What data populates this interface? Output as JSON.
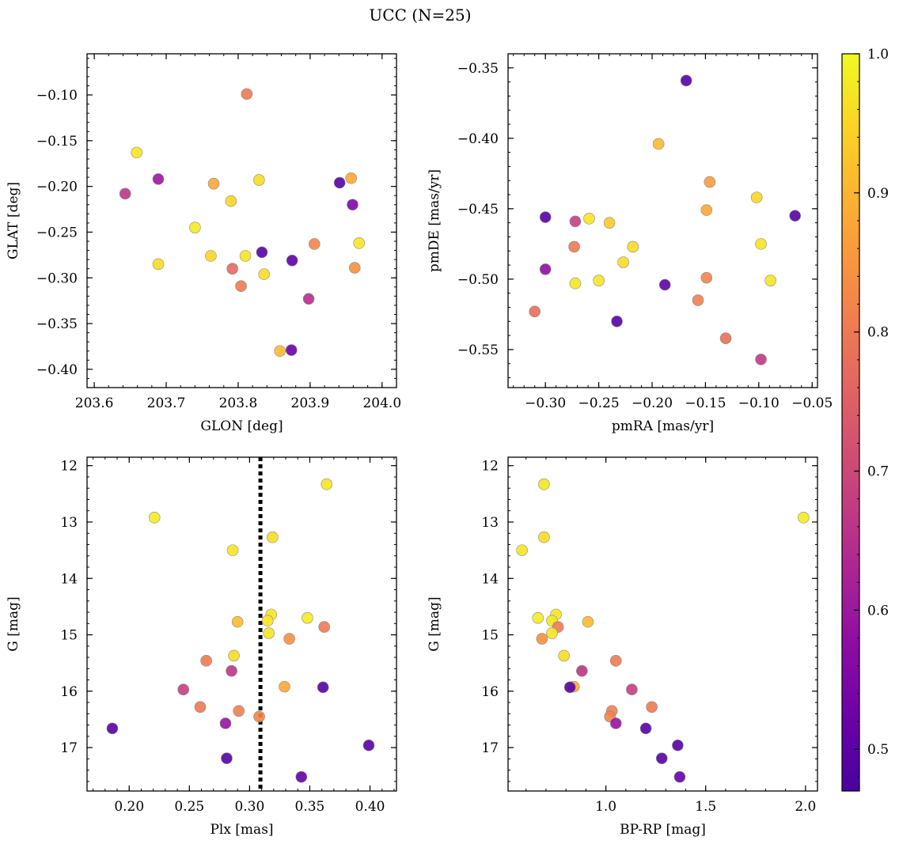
{
  "figure": {
    "title": "UCC (N=25)",
    "colormap": "plasma",
    "colorbar": {
      "range": [
        0.47,
        1.0
      ],
      "ticks": [
        0.5,
        0.6,
        0.7,
        0.8,
        0.9,
        1.0
      ],
      "tick_labels": [
        "0.5",
        "0.6",
        "0.7",
        "0.8",
        "0.9",
        "1.0"
      ]
    }
  },
  "chart_data": [
    {
      "type": "scatter",
      "id": "glon-glat",
      "xlabel": "GLON [deg]",
      "ylabel": "GLAT [deg]",
      "xlim": [
        203.59,
        204.02
      ],
      "ylim": [
        -0.42,
        -0.055
      ],
      "y_inverted": false,
      "grid": false,
      "xticks": [
        203.6,
        203.7,
        203.8,
        203.9,
        204.0
      ],
      "xtick_labels": [
        "203.6",
        "203.7",
        "203.8",
        "203.9",
        "204.0"
      ],
      "yticks": [
        -0.1,
        -0.15,
        -0.2,
        -0.25,
        -0.3,
        -0.35,
        -0.4
      ],
      "ytick_labels": [
        "−0.10",
        "−0.15",
        "−0.20",
        "−0.25",
        "−0.30",
        "−0.35",
        "−0.40"
      ],
      "points": [
        {
          "x": 203.812,
          "y": -0.099,
          "c": 0.8
        },
        {
          "x": 203.659,
          "y": -0.163,
          "c": 0.97
        },
        {
          "x": 203.643,
          "y": -0.208,
          "c": 0.66
        },
        {
          "x": 203.689,
          "y": -0.192,
          "c": 0.6
        },
        {
          "x": 203.766,
          "y": -0.197,
          "c": 0.88
        },
        {
          "x": 203.79,
          "y": -0.216,
          "c": 0.95
        },
        {
          "x": 203.829,
          "y": -0.193,
          "c": 0.96
        },
        {
          "x": 203.941,
          "y": -0.196,
          "c": 0.49
        },
        {
          "x": 203.957,
          "y": -0.191,
          "c": 0.88
        },
        {
          "x": 203.959,
          "y": -0.22,
          "c": 0.55
        },
        {
          "x": 203.74,
          "y": -0.245,
          "c": 0.98
        },
        {
          "x": 203.689,
          "y": -0.285,
          "c": 0.96
        },
        {
          "x": 203.762,
          "y": -0.276,
          "c": 0.95
        },
        {
          "x": 203.792,
          "y": -0.29,
          "c": 0.77
        },
        {
          "x": 203.81,
          "y": -0.276,
          "c": 0.97
        },
        {
          "x": 203.833,
          "y": -0.272,
          "c": 0.49
        },
        {
          "x": 203.836,
          "y": -0.296,
          "c": 0.96
        },
        {
          "x": 203.804,
          "y": -0.309,
          "c": 0.8
        },
        {
          "x": 203.875,
          "y": -0.281,
          "c": 0.5
        },
        {
          "x": 203.906,
          "y": -0.263,
          "c": 0.82
        },
        {
          "x": 203.968,
          "y": -0.262,
          "c": 0.97
        },
        {
          "x": 203.962,
          "y": -0.289,
          "c": 0.84
        },
        {
          "x": 203.898,
          "y": -0.323,
          "c": 0.65
        },
        {
          "x": 203.858,
          "y": -0.38,
          "c": 0.91
        },
        {
          "x": 203.874,
          "y": -0.379,
          "c": 0.52
        }
      ]
    },
    {
      "type": "scatter",
      "id": "pmra-pmde",
      "xlabel": "pmRA [mas/yr]",
      "ylabel": "pmDE [mas/yr]",
      "xlim": [
        -0.335,
        -0.045
      ],
      "ylim": [
        -0.577,
        -0.34
      ],
      "y_inverted": false,
      "grid": false,
      "xticks": [
        -0.3,
        -0.25,
        -0.2,
        -0.15,
        -0.1,
        -0.05
      ],
      "xtick_labels": [
        "−0.30",
        "−0.25",
        "−0.20",
        "−0.15",
        "−0.10",
        "−0.05"
      ],
      "yticks": [
        -0.35,
        -0.4,
        -0.45,
        -0.5,
        -0.55
      ],
      "ytick_labels": [
        "−0.35",
        "−0.40",
        "−0.45",
        "−0.50",
        "−0.55"
      ],
      "points": [
        {
          "x": -0.168,
          "y": -0.359,
          "c": 0.49
        },
        {
          "x": -0.194,
          "y": -0.404,
          "c": 0.91
        },
        {
          "x": -0.146,
          "y": -0.431,
          "c": 0.86
        },
        {
          "x": -0.102,
          "y": -0.442,
          "c": 0.95
        },
        {
          "x": -0.149,
          "y": -0.451,
          "c": 0.88
        },
        {
          "x": -0.066,
          "y": -0.455,
          "c": 0.49
        },
        {
          "x": -0.3,
          "y": -0.456,
          "c": 0.49
        },
        {
          "x": -0.272,
          "y": -0.459,
          "c": 0.68
        },
        {
          "x": -0.259,
          "y": -0.457,
          "c": 0.97
        },
        {
          "x": -0.24,
          "y": -0.46,
          "c": 0.93
        },
        {
          "x": -0.273,
          "y": -0.477,
          "c": 0.8
        },
        {
          "x": -0.218,
          "y": -0.477,
          "c": 0.96
        },
        {
          "x": -0.098,
          "y": -0.475,
          "c": 0.97
        },
        {
          "x": -0.227,
          "y": -0.488,
          "c": 0.96
        },
        {
          "x": -0.3,
          "y": -0.493,
          "c": 0.58
        },
        {
          "x": -0.149,
          "y": -0.499,
          "c": 0.82
        },
        {
          "x": -0.089,
          "y": -0.501,
          "c": 0.97
        },
        {
          "x": -0.272,
          "y": -0.503,
          "c": 0.97
        },
        {
          "x": -0.25,
          "y": -0.501,
          "c": 0.97
        },
        {
          "x": -0.188,
          "y": -0.504,
          "c": 0.5
        },
        {
          "x": -0.157,
          "y": -0.515,
          "c": 0.81
        },
        {
          "x": -0.31,
          "y": -0.523,
          "c": 0.78
        },
        {
          "x": -0.233,
          "y": -0.53,
          "c": 0.49
        },
        {
          "x": -0.131,
          "y": -0.542,
          "c": 0.78
        },
        {
          "x": -0.098,
          "y": -0.557,
          "c": 0.67
        }
      ]
    },
    {
      "type": "scatter",
      "id": "plx-g",
      "xlabel": "Plx [mas]",
      "ylabel": "G [mag]",
      "xlim": [
        0.165,
        0.422
      ],
      "ylim": [
        11.85,
        17.77
      ],
      "y_inverted": true,
      "grid": false,
      "vline": {
        "x": 0.309,
        "style": "dotted"
      },
      "xticks": [
        0.2,
        0.25,
        0.3,
        0.35,
        0.4
      ],
      "xtick_labels": [
        "0.20",
        "0.25",
        "0.30",
        "0.35",
        "0.40"
      ],
      "yticks": [
        12,
        13,
        14,
        15,
        16,
        17
      ],
      "ytick_labels": [
        "12",
        "13",
        "14",
        "15",
        "16",
        "17"
      ],
      "points": [
        {
          "x": 0.364,
          "y": 12.33,
          "c": 0.97
        },
        {
          "x": 0.221,
          "y": 12.92,
          "c": 0.98
        },
        {
          "x": 0.319,
          "y": 13.27,
          "c": 0.96
        },
        {
          "x": 0.286,
          "y": 13.5,
          "c": 0.97
        },
        {
          "x": 0.318,
          "y": 14.64,
          "c": 0.97
        },
        {
          "x": 0.348,
          "y": 14.7,
          "c": 0.98
        },
        {
          "x": 0.315,
          "y": 14.75,
          "c": 0.97
        },
        {
          "x": 0.29,
          "y": 14.77,
          "c": 0.91
        },
        {
          "x": 0.362,
          "y": 14.86,
          "c": 0.8
        },
        {
          "x": 0.316,
          "y": 14.97,
          "c": 0.97
        },
        {
          "x": 0.333,
          "y": 15.07,
          "c": 0.84
        },
        {
          "x": 0.287,
          "y": 15.37,
          "c": 0.96
        },
        {
          "x": 0.264,
          "y": 15.46,
          "c": 0.8
        },
        {
          "x": 0.285,
          "y": 15.64,
          "c": 0.66
        },
        {
          "x": 0.245,
          "y": 15.97,
          "c": 0.68
        },
        {
          "x": 0.329,
          "y": 15.92,
          "c": 0.88
        },
        {
          "x": 0.361,
          "y": 15.93,
          "c": 0.49
        },
        {
          "x": 0.259,
          "y": 16.28,
          "c": 0.8
        },
        {
          "x": 0.291,
          "y": 16.35,
          "c": 0.81
        },
        {
          "x": 0.308,
          "y": 16.45,
          "c": 0.82
        },
        {
          "x": 0.28,
          "y": 16.57,
          "c": 0.59
        },
        {
          "x": 0.186,
          "y": 16.66,
          "c": 0.49
        },
        {
          "x": 0.399,
          "y": 16.96,
          "c": 0.49
        },
        {
          "x": 0.281,
          "y": 17.19,
          "c": 0.49
        },
        {
          "x": 0.343,
          "y": 17.52,
          "c": 0.51
        }
      ]
    },
    {
      "type": "scatter",
      "id": "bprp-g",
      "xlabel": "BP-RP [mag]",
      "ylabel": "G [mag]",
      "xlim": [
        0.51,
        2.06
      ],
      "ylim": [
        11.85,
        17.77
      ],
      "y_inverted": true,
      "grid": false,
      "xticks": [
        1.0,
        1.5,
        2.0
      ],
      "xtick_labels": [
        "1.0",
        "1.5",
        "2.0"
      ],
      "yticks": [
        12,
        13,
        14,
        15,
        16,
        17
      ],
      "ytick_labels": [
        "12",
        "13",
        "14",
        "15",
        "16",
        "17"
      ],
      "points": [
        {
          "x": 0.69,
          "y": 12.33,
          "c": 0.97
        },
        {
          "x": 1.99,
          "y": 12.92,
          "c": 0.98
        },
        {
          "x": 0.69,
          "y": 13.27,
          "c": 0.96
        },
        {
          "x": 0.58,
          "y": 13.5,
          "c": 0.97
        },
        {
          "x": 0.75,
          "y": 14.64,
          "c": 0.97
        },
        {
          "x": 0.66,
          "y": 14.7,
          "c": 0.98
        },
        {
          "x": 0.73,
          "y": 14.75,
          "c": 0.97
        },
        {
          "x": 0.91,
          "y": 14.77,
          "c": 0.91
        },
        {
          "x": 0.76,
          "y": 14.86,
          "c": 0.8
        },
        {
          "x": 0.73,
          "y": 14.97,
          "c": 0.97
        },
        {
          "x": 0.68,
          "y": 15.07,
          "c": 0.84
        },
        {
          "x": 0.79,
          "y": 15.37,
          "c": 0.96
        },
        {
          "x": 1.05,
          "y": 15.46,
          "c": 0.8
        },
        {
          "x": 0.88,
          "y": 15.64,
          "c": 0.66
        },
        {
          "x": 1.13,
          "y": 15.97,
          "c": 0.68
        },
        {
          "x": 0.84,
          "y": 15.92,
          "c": 0.88
        },
        {
          "x": 0.82,
          "y": 15.93,
          "c": 0.49
        },
        {
          "x": 1.23,
          "y": 16.28,
          "c": 0.8
        },
        {
          "x": 1.03,
          "y": 16.35,
          "c": 0.81
        },
        {
          "x": 1.02,
          "y": 16.45,
          "c": 0.82
        },
        {
          "x": 1.05,
          "y": 16.57,
          "c": 0.59
        },
        {
          "x": 1.2,
          "y": 16.66,
          "c": 0.49
        },
        {
          "x": 1.36,
          "y": 16.96,
          "c": 0.49
        },
        {
          "x": 1.28,
          "y": 17.19,
          "c": 0.49
        },
        {
          "x": 1.37,
          "y": 17.52,
          "c": 0.51
        }
      ]
    }
  ]
}
